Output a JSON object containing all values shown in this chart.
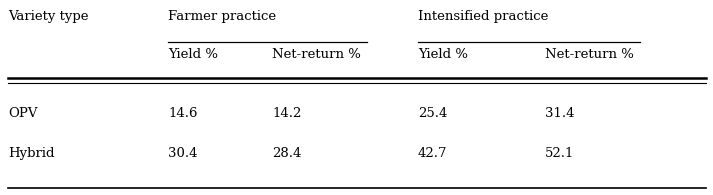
{
  "col_headers_row1": [
    "Variety type",
    "Farmer practice",
    "Intensified practice"
  ],
  "col_headers_row2": [
    "Yield %",
    "Net-return %",
    "Yield %",
    "Net-return %"
  ],
  "rows": [
    [
      "OPV",
      "14.6",
      "14.2",
      "25.4",
      "31.4"
    ],
    [
      "Hybrid",
      "30.4",
      "28.4",
      "42.7",
      "52.1"
    ]
  ],
  "background_color": "#ffffff",
  "font_size": 9.5
}
